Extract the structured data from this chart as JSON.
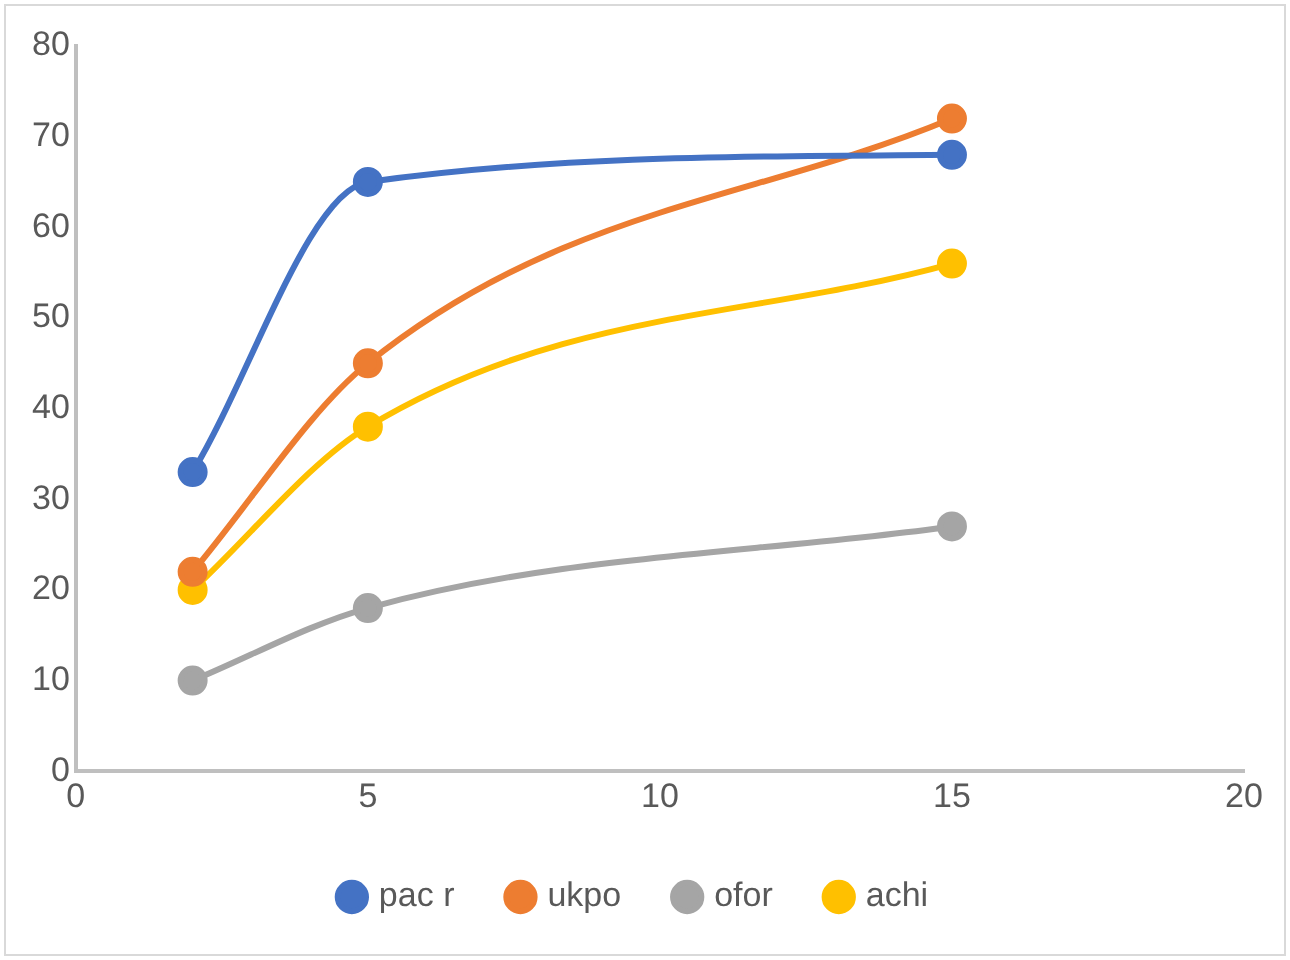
{
  "chart_data": {
    "type": "line",
    "x": [
      2,
      5,
      15
    ],
    "series": [
      {
        "name": "pac r",
        "color": "#4472c4",
        "values": [
          33,
          65,
          68
        ]
      },
      {
        "name": "ukpo",
        "color": "#ed7d31",
        "values": [
          22,
          45,
          72
        ]
      },
      {
        "name": "ofor",
        "color": "#a5a5a5",
        "values": [
          10,
          18,
          27
        ]
      },
      {
        "name": "achi",
        "color": "#ffc000",
        "values": [
          20,
          38,
          56
        ]
      }
    ],
    "xlim": [
      0,
      20
    ],
    "xticks": [
      0,
      5,
      10,
      15,
      20
    ],
    "ylim": [
      0,
      80
    ],
    "yticks": [
      0,
      10,
      20,
      30,
      40,
      50,
      60,
      70,
      80
    ],
    "grid": false,
    "legend": "bottom",
    "marker": "circle",
    "line_style": "solid"
  }
}
